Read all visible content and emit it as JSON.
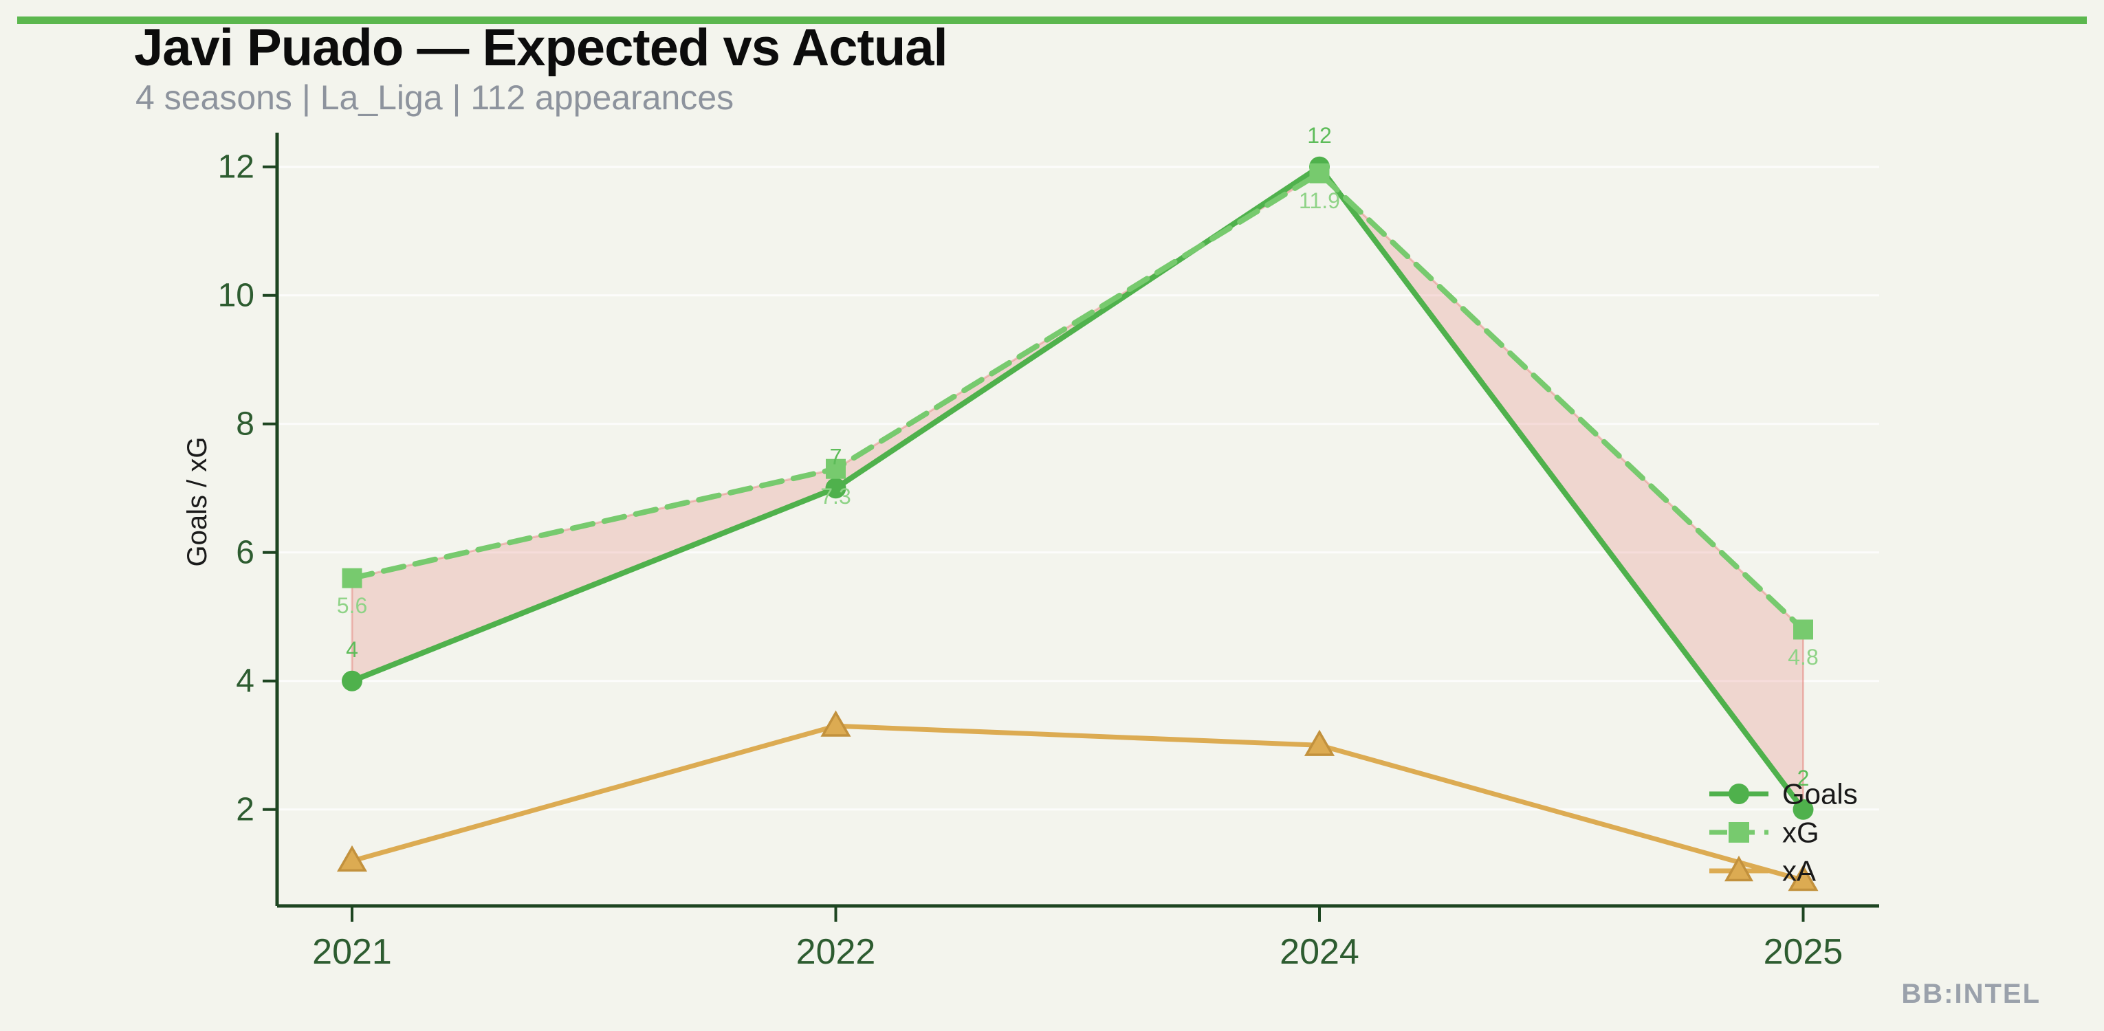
{
  "page": {
    "background": "#f3f4ed",
    "accent_bar_color": "#5bb74e"
  },
  "header": {
    "title": "Javi Puado — Expected vs Actual",
    "subtitle": "4 seasons | La_Liga | 112 appearances"
  },
  "footer": {
    "brand": "BB:INTEL"
  },
  "chart_data": {
    "type": "line",
    "title": "Javi Puado — Expected vs Actual",
    "categories": [
      "2021",
      "2022",
      "2024",
      "2025"
    ],
    "series": [
      {
        "name": "Goals",
        "values": [
          4,
          7,
          12,
          2
        ],
        "labels": [
          "4",
          "7",
          "12",
          "2"
        ],
        "color": "#4fb14c",
        "label_color": "#5dbc59",
        "marker": "circle",
        "line_style": "solid"
      },
      {
        "name": "xG",
        "values": [
          5.6,
          7.3,
          11.9,
          4.8
        ],
        "labels": [
          "5.6",
          "7.3",
          "11.9",
          "4.8"
        ],
        "color": "#77ca6e",
        "label_color": "#8fd387",
        "marker": "square",
        "line_style": "dashed"
      },
      {
        "name": "xA",
        "values": [
          1.2,
          3.3,
          3.0,
          0.9
        ],
        "labels": [],
        "color": "#dcab52",
        "marker_edge_color": "#c2913d",
        "label_color": "#dcab52",
        "marker": "triangle",
        "line_style": "solid"
      }
    ],
    "xlabel": "",
    "ylabel": "Goals / xG",
    "yticks": [
      2,
      4,
      6,
      8,
      10,
      12
    ],
    "ylim": [
      0.5,
      12.6
    ],
    "grid": true,
    "legend_position": "lower right",
    "fill_between": {
      "between": [
        "Goals",
        "xG"
      ],
      "color": "rgba(226,110,102,0.22)",
      "edge_color": "rgba(226,110,102,0.38)"
    },
    "axis_color": "#1d4521",
    "tick_label_color": "#2d5c30",
    "gridline_color": "rgba(255,255,255,0.75)"
  }
}
